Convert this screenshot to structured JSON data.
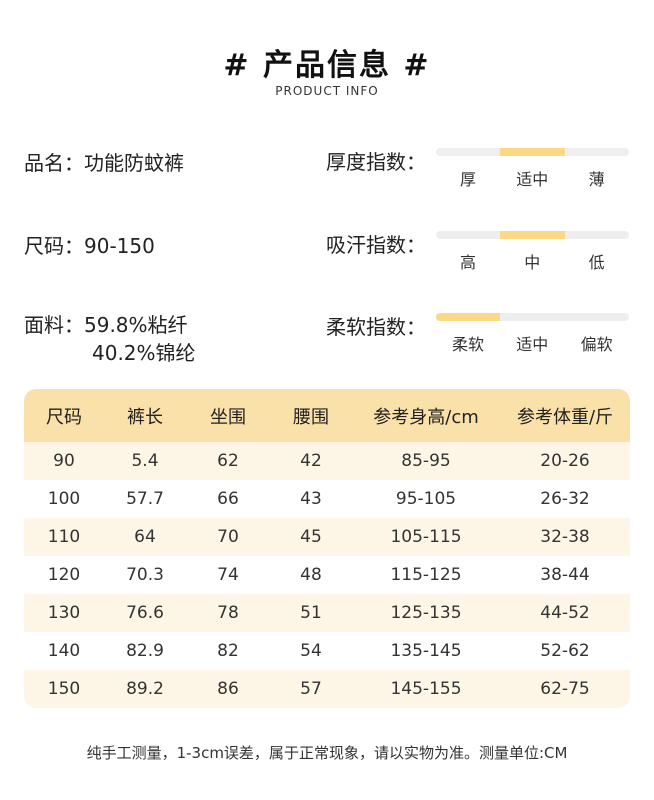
{
  "header": {
    "title": "# 产品信息 #",
    "subtitle": "PRODUCT INFO"
  },
  "info": {
    "name": "品名：功能防蚊裤",
    "size": "尺码：90-150",
    "fabric_line1": "面料：59.8%粘纤",
    "fabric_line2": "40.2%锦纶"
  },
  "indices": [
    {
      "label": "厚度指数：",
      "ticks": [
        "厚",
        "适中",
        "薄"
      ],
      "selected": 1
    },
    {
      "label": "吸汗指数：",
      "ticks": [
        "高",
        "中",
        "低"
      ],
      "selected": 1
    },
    {
      "label": "柔软指数：",
      "ticks": [
        "柔软",
        "适中",
        "偏软"
      ],
      "selected": 0
    }
  ],
  "size_table": {
    "headers": [
      "尺码",
      "裤长",
      "坐围",
      "腰围",
      "参考身高/cm",
      "参考体重/斤"
    ],
    "rows": [
      [
        "90",
        "5.4",
        "62",
        "42",
        "85-95",
        "20-26"
      ],
      [
        "100",
        "57.7",
        "66",
        "43",
        "95-105",
        "26-32"
      ],
      [
        "110",
        "64",
        "70",
        "45",
        "105-115",
        "32-38"
      ],
      [
        "120",
        "70.3",
        "74",
        "48",
        "115-125",
        "38-44"
      ],
      [
        "130",
        "76.6",
        "78",
        "51",
        "125-135",
        "44-52"
      ],
      [
        "140",
        "82.9",
        "82",
        "54",
        "135-145",
        "52-62"
      ],
      [
        "150",
        "89.2",
        "86",
        "57",
        "145-155",
        "62-75"
      ]
    ]
  },
  "note": "纯手工测量，1-3cm误差，属于正常现象，请以实物为准。测量单位:CM",
  "colors": {
    "accent": "#fad886",
    "header_bg": "#fae1a9",
    "row_alt": "#fdf6e6"
  }
}
